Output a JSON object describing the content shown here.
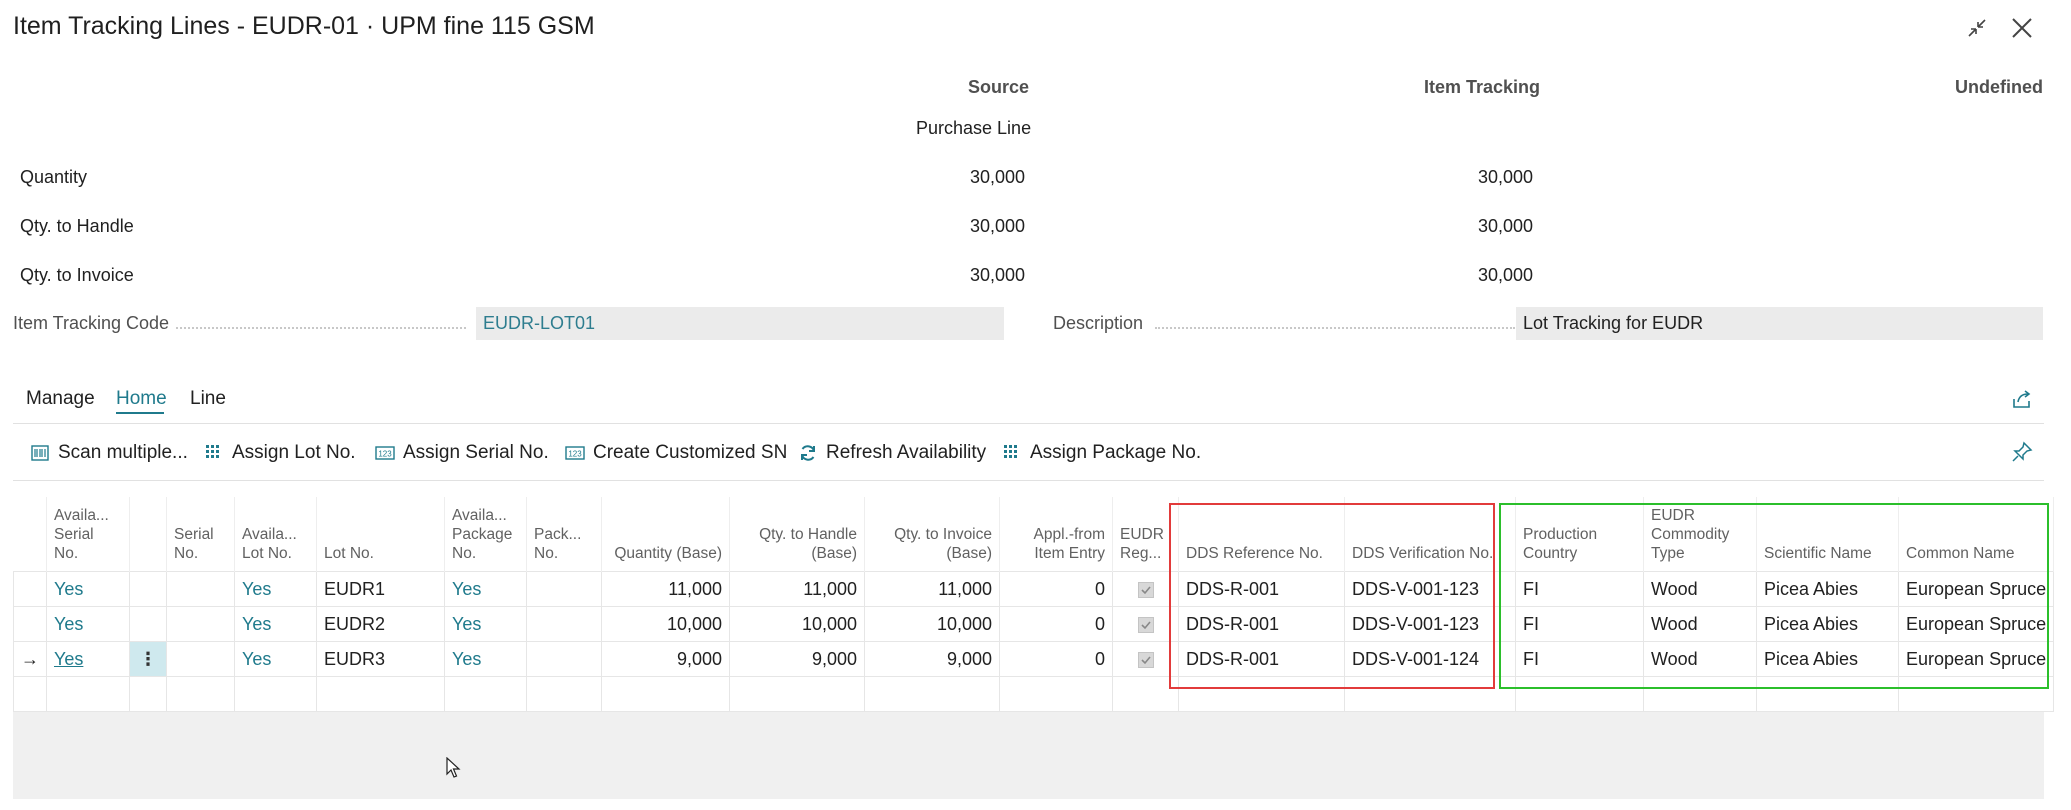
{
  "window": {
    "title": "Item Tracking Lines - EUDR-01 · UPM fine 115 GSM"
  },
  "summary": {
    "headers": {
      "source": "Source",
      "item_tracking": "Item Tracking",
      "undefined": "Undefined"
    },
    "source_subheader": "Purchase Line",
    "rows": [
      {
        "label": "Quantity",
        "source": "30,000",
        "item_tracking": "30,000"
      },
      {
        "label": "Qty. to Handle",
        "source": "30,000",
        "item_tracking": "30,000"
      },
      {
        "label": "Qty. to Invoice",
        "source": "30,000",
        "item_tracking": "30,000"
      }
    ]
  },
  "fields": {
    "item_tracking_code_label": "Item Tracking Code",
    "item_tracking_code_value": "EUDR-LOT01",
    "description_label": "Description",
    "description_value": "Lot Tracking for EUDR"
  },
  "tabs": [
    "Manage",
    "Home",
    "Line"
  ],
  "active_tab": "Home",
  "actions": [
    {
      "label": "Scan multiple...",
      "icon": "scan-icon"
    },
    {
      "label": "Assign Lot No.",
      "icon": "grid-icon"
    },
    {
      "label": "Assign Serial No.",
      "icon": "number-icon"
    },
    {
      "label": "Create Customized SN",
      "icon": "number-icon"
    },
    {
      "label": "Refresh Availability",
      "icon": "refresh-icon"
    },
    {
      "label": "Assign Package No.",
      "icon": "grid-icon"
    }
  ],
  "grid": {
    "headers": {
      "avail_serial": "Availa... Serial No.",
      "serial_no": "Serial No.",
      "avail_lot": "Availa... Lot No.",
      "lot_no": "Lot No.",
      "avail_package": "Availa... Package No.",
      "package_no": "Pack... No.",
      "quantity_base": "Quantity (Base)",
      "qty_handle_base": "Qty. to Handle (Base)",
      "qty_invoice_base": "Qty. to Invoice (Base)",
      "appl_from": "Appl.-from Item Entry",
      "eudr_reg": "EUDR Reg...",
      "dds_ref": "DDS Reference No.",
      "dds_verif": "DDS Verification No.",
      "prod_country": "Production Country",
      "eudr_commodity": "EUDR Commodity Type",
      "scientific_name": "Scientific Name",
      "common_name": "Common Name"
    },
    "rows": [
      {
        "avail_serial": "Yes",
        "avail_lot": "Yes",
        "lot_no": "EUDR1",
        "avail_package": "Yes",
        "quantity_base": "11,000",
        "qty_handle_base": "11,000",
        "qty_invoice_base": "11,000",
        "appl_from": "0",
        "eudr_reg": true,
        "dds_ref": "DDS-R-001",
        "dds_verif": "DDS-V-001-123",
        "prod_country": "FI",
        "eudr_commodity": "Wood",
        "scientific_name": "Picea Abies",
        "common_name": "European Spruce",
        "selected": false
      },
      {
        "avail_serial": "Yes",
        "avail_lot": "Yes",
        "lot_no": "EUDR2",
        "avail_package": "Yes",
        "quantity_base": "10,000",
        "qty_handle_base": "10,000",
        "qty_invoice_base": "10,000",
        "appl_from": "0",
        "eudr_reg": true,
        "dds_ref": "DDS-R-001",
        "dds_verif": "DDS-V-001-123",
        "prod_country": "FI",
        "eudr_commodity": "Wood",
        "scientific_name": "Picea Abies",
        "common_name": "European Spruce",
        "selected": false
      },
      {
        "avail_serial": "Yes",
        "avail_lot": "Yes",
        "lot_no": "EUDR3",
        "avail_package": "Yes",
        "quantity_base": "9,000",
        "qty_handle_base": "9,000",
        "qty_invoice_base": "9,000",
        "appl_from": "0",
        "eudr_reg": true,
        "dds_ref": "DDS-R-001",
        "dds_verif": "DDS-V-001-124",
        "prod_country": "FI",
        "eudr_commodity": "Wood",
        "scientific_name": "Picea Abies",
        "common_name": "European Spruce",
        "selected": true
      }
    ]
  },
  "colors": {
    "accent": "#1f7a8c",
    "highlight_red": "#e23b3b",
    "highlight_green": "#2bbf2b"
  }
}
